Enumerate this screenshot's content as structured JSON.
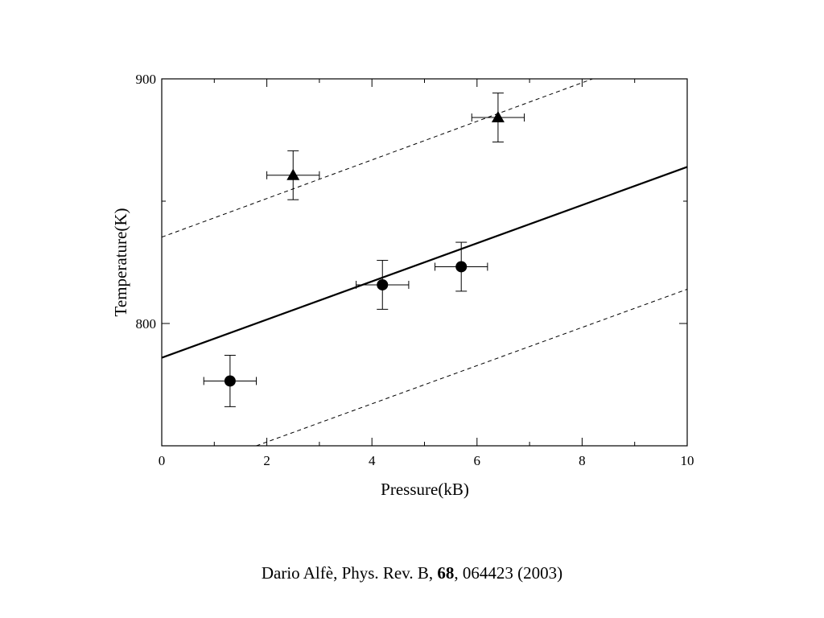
{
  "chart_data": {
    "type": "scatter",
    "xlabel": "Pressure(kB)",
    "ylabel": "Temperature(K)",
    "xlim": [
      0,
      10
    ],
    "ylim": [
      750,
      900
    ],
    "xticks": [
      0,
      2,
      4,
      6,
      8,
      10
    ],
    "yticks": [
      800,
      900
    ],
    "x_minor_step": 1,
    "y_minor_step": 50,
    "grid": false,
    "legend": "none",
    "series": [
      {
        "marker": "circle",
        "points": [
          {
            "x": 1.3,
            "y": 776.5,
            "xerr": 0.5,
            "yerr": 10.5
          },
          {
            "x": 4.2,
            "y": 815.8,
            "xerr": 0.5,
            "yerr": 10
          },
          {
            "x": 5.7,
            "y": 823.2,
            "xerr": 0.5,
            "yerr": 10
          }
        ]
      },
      {
        "marker": "triangle",
        "points": [
          {
            "x": 2.5,
            "y": 860.6,
            "xerr": 0.5,
            "yerr": 10
          },
          {
            "x": 6.4,
            "y": 884.2,
            "xerr": 0.5,
            "yerr": 10
          }
        ]
      }
    ],
    "lines": [
      {
        "style": "solid",
        "x": [
          0,
          10
        ],
        "y": [
          786,
          864
        ]
      },
      {
        "style": "dashed",
        "x": [
          0,
          8.2
        ],
        "y": [
          835.3,
          900
        ]
      },
      {
        "style": "dashed",
        "x": [
          1.8,
          10
        ],
        "y": [
          750,
          814
        ]
      }
    ]
  },
  "caption": {
    "authors": "Dario Alfè, Phys. Rev. B, ",
    "volume": "68",
    "rest": ", 064423 (2003)"
  }
}
